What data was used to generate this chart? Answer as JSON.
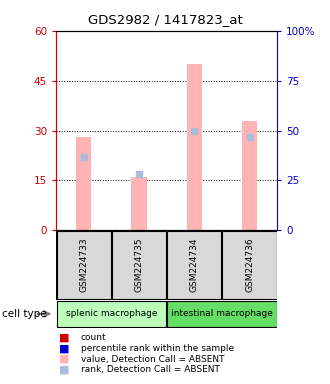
{
  "title": "GDS2982 / 1417823_at",
  "samples": [
    "GSM224733",
    "GSM224735",
    "GSM224734",
    "GSM224736"
  ],
  "bar_values": [
    28,
    16,
    50,
    33
  ],
  "rank_values_pct": [
    37,
    28,
    50,
    47
  ],
  "ylim_left": [
    0,
    60
  ],
  "ylim_right": [
    0,
    100
  ],
  "yticks_left": [
    0,
    15,
    30,
    45,
    60
  ],
  "ytick_labels_left": [
    "0",
    "15",
    "30",
    "45",
    "60"
  ],
  "yticks_right": [
    0,
    25,
    50,
    75,
    100
  ],
  "ytick_labels_right": [
    "0",
    "25",
    "50",
    "75",
    "100%"
  ],
  "bar_color": "#ffb3b3",
  "rank_color": "#aabbdd",
  "left_axis_color": "#cc0000",
  "right_axis_color": "#0000cc",
  "plot_bg": "#d8d8d8",
  "group_label_bg_splenic": "#bbffbb",
  "group_label_bg_intestinal": "#66dd66",
  "group_configs": [
    {
      "start": 0,
      "end": 2,
      "name": "splenic macrophage"
    },
    {
      "start": 2,
      "end": 4,
      "name": "intestinal macrophage"
    }
  ],
  "legend_colors": [
    "#cc0000",
    "#0000cc",
    "#ffb3b3",
    "#aabbdd"
  ],
  "legend_labels": [
    "count",
    "percentile rank within the sample",
    "value, Detection Call = ABSENT",
    "rank, Detection Call = ABSENT"
  ]
}
